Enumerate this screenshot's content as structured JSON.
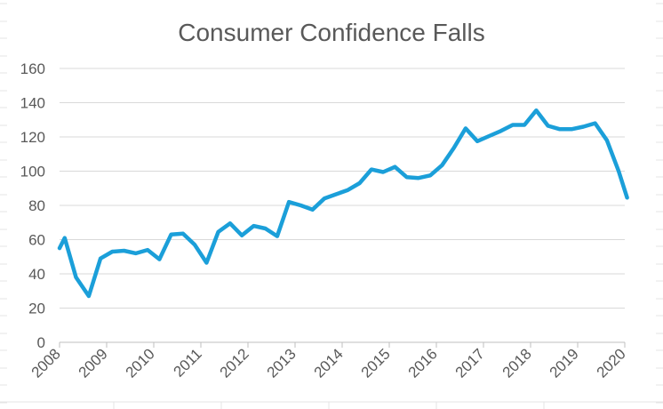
{
  "chart_data": {
    "type": "line",
    "title": "Consumer Confidence Falls",
    "xlabel": "",
    "ylabel": "",
    "ylim": [
      0,
      160
    ],
    "yticks": [
      0,
      20,
      40,
      60,
      80,
      100,
      120,
      140,
      160
    ],
    "xlim": [
      2008,
      2020
    ],
    "xticks": [
      "2008",
      "2009",
      "2010",
      "2011",
      "2012",
      "2013",
      "2014",
      "2015",
      "2016",
      "2017",
      "2018",
      "2019",
      "2020"
    ],
    "grid": true,
    "legend": "none",
    "line_color": "#1b9fd9",
    "series": [
      {
        "x": [
          2008.0,
          2008.11,
          2008.35,
          2008.62,
          2008.87,
          2009.12,
          2009.37,
          2009.62,
          2009.87,
          2010.12,
          2010.37,
          2010.62,
          2010.87,
          2011.12,
          2011.37,
          2011.62,
          2011.87,
          2012.12,
          2012.37,
          2012.62,
          2012.87,
          2013.12,
          2013.37,
          2013.62,
          2013.87,
          2014.12,
          2014.37,
          2014.62,
          2014.87,
          2015.12,
          2015.37,
          2015.62,
          2015.87,
          2016.12,
          2016.37,
          2016.62,
          2016.87,
          2017.12,
          2017.37,
          2017.62,
          2017.87,
          2018.12,
          2018.37,
          2018.62,
          2018.87,
          2019.12,
          2019.37,
          2019.62,
          2019.87,
          2020.05
        ],
        "values": [
          55,
          61,
          38,
          27,
          49,
          53,
          53.5,
          52,
          54,
          48.5,
          63,
          63.5,
          57,
          46.5,
          64.5,
          69.5,
          62.5,
          68,
          66.5,
          62,
          82,
          80,
          77.5,
          84,
          86.5,
          89,
          93,
          101,
          99.5,
          102.5,
          96.5,
          96,
          97.5,
          103.5,
          113.5,
          125,
          117.5,
          120.5,
          123.5,
          127,
          127,
          135.5,
          126.5,
          124.5,
          124.5,
          126,
          128,
          118,
          100,
          84.5
        ]
      }
    ]
  }
}
